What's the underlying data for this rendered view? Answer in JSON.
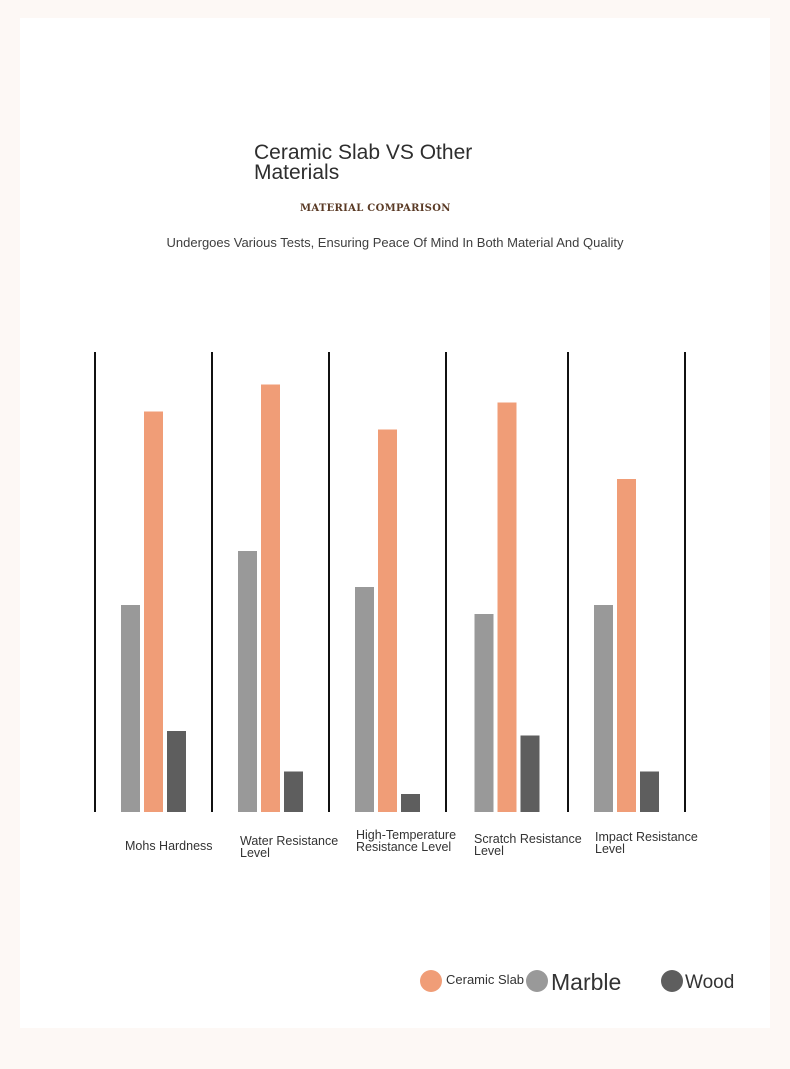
{
  "header": {
    "title": "Ceramic Slab VS Other Materials",
    "tag": "MATERIAL COMPARISON",
    "subtitle": "Undergoes Various Tests, Ensuring Peace Of Mind In Both Material And Quality"
  },
  "colors": {
    "ceramic": "#f09d77",
    "marble": "#999999",
    "wood": "#5e5e5e",
    "divider": "#111111"
  },
  "chart_data": {
    "type": "bar",
    "title": "Ceramic Slab VS Other Materials",
    "categories": [
      "Mohs Hardness",
      "Water Resistance Level",
      "High-Temperature Resistance Level",
      "Scratch Resistance Level",
      "Impact Resistance Level"
    ],
    "series": [
      {
        "name": "Marble",
        "values": [
          46,
          58,
          50,
          44,
          46
        ]
      },
      {
        "name": "Ceramic Slab",
        "values": [
          89,
          95,
          85,
          91,
          74
        ]
      },
      {
        "name": "Wood",
        "values": [
          18,
          9,
          4,
          17,
          9
        ]
      }
    ],
    "ylim": [
      0,
      100
    ],
    "grid": false,
    "legend": "bottom-right"
  },
  "legend": {
    "items": [
      {
        "label": "Ceramic Slab",
        "color": "#f09d77"
      },
      {
        "label": "Marble",
        "color": "#999999"
      },
      {
        "label": "Wood",
        "color": "#5e5e5e"
      }
    ]
  }
}
